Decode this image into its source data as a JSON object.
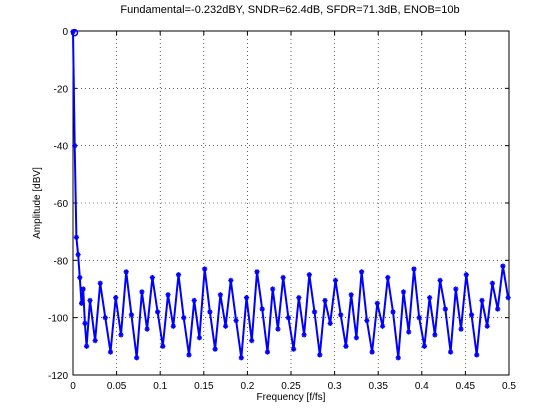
{
  "chart_data": {
    "type": "line",
    "title": "Fundamental=-0.232dBY, SNDR=62.4dB, SFDR=71.3dB, ENOB=10b",
    "xlabel": "Frequency [f/fs]",
    "ylabel": "Amplitude [dBV]",
    "xlim": [
      0,
      0.5
    ],
    "ylim": [
      -120,
      0
    ],
    "xticks": [
      "0",
      "0.05",
      "0.1",
      "0.15",
      "0.2",
      "0.25",
      "0.3",
      "0.35",
      "0.4",
      "0.45",
      "0.5"
    ],
    "yticks": [
      "0",
      "-20",
      "-40",
      "-60",
      "-80",
      "-100",
      "-120"
    ],
    "grid": true,
    "series": [
      {
        "color": "#0000ff",
        "marker": "star",
        "fundamental": {
          "x": 0.0,
          "y": -0.232
        },
        "x": [
          0.0,
          0.00195,
          0.0039,
          0.00586,
          0.0078,
          0.0098,
          0.0117,
          0.0137,
          0.0156,
          0.0195,
          0.0254,
          0.0312,
          0.037,
          0.043,
          0.049,
          0.055,
          0.061,
          0.067,
          0.073,
          0.079,
          0.085,
          0.091,
          0.097,
          0.103,
          0.109,
          0.115,
          0.121,
          0.127,
          0.133,
          0.139,
          0.145,
          0.151,
          0.157,
          0.163,
          0.169,
          0.175,
          0.181,
          0.187,
          0.193,
          0.199,
          0.205,
          0.211,
          0.217,
          0.223,
          0.229,
          0.235,
          0.241,
          0.247,
          0.253,
          0.259,
          0.265,
          0.271,
          0.277,
          0.283,
          0.289,
          0.295,
          0.301,
          0.307,
          0.313,
          0.319,
          0.325,
          0.331,
          0.337,
          0.343,
          0.349,
          0.355,
          0.361,
          0.367,
          0.373,
          0.379,
          0.385,
          0.391,
          0.397,
          0.403,
          0.409,
          0.415,
          0.421,
          0.427,
          0.433,
          0.439,
          0.445,
          0.451,
          0.457,
          0.463,
          0.469,
          0.475,
          0.481,
          0.487,
          0.493,
          0.499
        ],
        "y": [
          -0.232,
          -40,
          -72,
          -78,
          -86,
          -95,
          -90,
          -102,
          -110,
          -94,
          -108,
          -88,
          -100,
          -112,
          -93,
          -106,
          -84,
          -99,
          -114,
          -91,
          -104,
          -86,
          -98,
          -110,
          -92,
          -103,
          -85,
          -100,
          -113,
          -94,
          -107,
          -83,
          -98,
          -111,
          -92,
          -103,
          -87,
          -101,
          -114,
          -93,
          -108,
          -84,
          -97,
          -112,
          -90,
          -104,
          -86,
          -100,
          -111,
          -93,
          -106,
          -85,
          -98,
          -113,
          -94,
          -102,
          -87,
          -99,
          -110,
          -92,
          -107,
          -84,
          -101,
          -112,
          -95,
          -103,
          -86,
          -98,
          -114,
          -91,
          -105,
          -83,
          -100,
          -110,
          -93,
          -106,
          -87,
          -97,
          -112,
          -90,
          -104,
          -85,
          -99,
          -113,
          -94,
          -103,
          -88,
          -97,
          -82,
          -93
        ]
      }
    ]
  }
}
